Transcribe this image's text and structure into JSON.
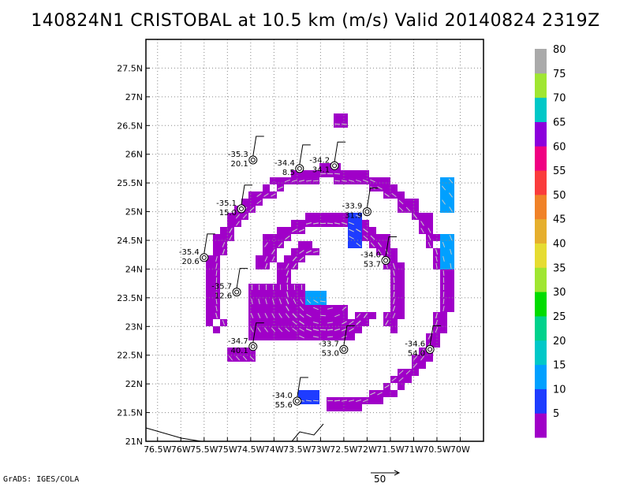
{
  "title": "140824N1 CRISTOBAL at 10.5 km (m/s) Valid 20140824 2319Z",
  "credit": "GrADS: IGES/COLA",
  "scale_vector_label": "50",
  "chart_data": {
    "type": "heatmap",
    "title": "140824N1 CRISTOBAL at 10.5 km (m/s) Valid 20140824 2319Z",
    "xlabel": "",
    "ylabel": "",
    "xlim": [
      -76.75,
      -69.5
    ],
    "ylim": [
      21.0,
      28.0
    ],
    "x_ticks": [
      -76.5,
      -76,
      -75.5,
      -75,
      -74.5,
      -74,
      -73.5,
      -73,
      -72.5,
      -72,
      -71.5,
      -71,
      -70.5,
      -70
    ],
    "x_tick_labels": [
      "76.5W",
      "76W",
      "75.5W",
      "75W",
      "74.5W",
      "74W",
      "73.5W",
      "73W",
      "72.5W",
      "72W",
      "71.5W",
      "71W",
      "70.5W",
      "70W"
    ],
    "y_ticks": [
      21,
      21.5,
      22,
      22.5,
      23,
      23.5,
      24,
      24.5,
      25,
      25.5,
      26,
      26.5,
      27,
      27.5
    ],
    "y_tick_labels": [
      "21N",
      "21.5N",
      "22N",
      "22.5N",
      "23N",
      "23.5N",
      "24N",
      "24.5N",
      "25N",
      "25.5N",
      "26N",
      "26.5N",
      "27N",
      "27.5N"
    ],
    "grid": true,
    "colorbar": {
      "labels": [
        "5",
        "10",
        "15",
        "20",
        "25",
        "30",
        "35",
        "40",
        "45",
        "50",
        "55",
        "60",
        "65",
        "70",
        "75",
        "80"
      ],
      "colors": [
        "#a000c8",
        "#1e3cff",
        "#00a0ff",
        "#00c8c8",
        "#00d28c",
        "#00dc00",
        "#a0e632",
        "#e6dc32",
        "#e6af2d",
        "#f08228",
        "#fa3c3c",
        "#f00082",
        "#8c00dc",
        "#00c8c8",
        "#a0e632",
        "#aaaaaa"
      ]
    },
    "storm_center": {
      "lon": -72.9,
      "lat": 23.7
    },
    "rings": [
      {
        "radius_deg": 2.55,
        "start_deg": -90,
        "end_deg": 200,
        "speed": 5
      },
      {
        "radius_deg": 1.55,
        "start_deg": -30,
        "end_deg": 160,
        "speed": 5
      },
      {
        "radius_deg": 1.05,
        "start_deg": 110,
        "end_deg": 330,
        "speed": 5
      }
    ],
    "patches": [
      {
        "lon": -74.0,
        "lat": 23.3,
        "w": 1.2,
        "h": 0.9,
        "speed": 5
      },
      {
        "lon": -73.0,
        "lat": 23.1,
        "w": 1.1,
        "h": 0.6,
        "speed": 5
      },
      {
        "lon": -73.2,
        "lat": 23.55,
        "w": 0.4,
        "h": 0.2,
        "speed": 15
      },
      {
        "lon": -72.3,
        "lat": 24.7,
        "w": 0.3,
        "h": 0.5,
        "speed": 10
      },
      {
        "lon": -73.3,
        "lat": 21.8,
        "w": 0.4,
        "h": 0.3,
        "speed": 10
      },
      {
        "lon": -70.3,
        "lat": 25.3,
        "w": 0.25,
        "h": 0.5,
        "speed": 15
      },
      {
        "lon": -70.35,
        "lat": 24.3,
        "w": 0.2,
        "h": 0.6,
        "speed": 15
      },
      {
        "lon": -74.7,
        "lat": 22.55,
        "w": 0.5,
        "h": 0.2,
        "speed": 5
      },
      {
        "lon": -74.6,
        "lat": 25.15,
        "w": 0.12,
        "h": 0.12,
        "speed": 5
      },
      {
        "lon": -74.2,
        "lat": 24.55,
        "w": 0.15,
        "h": 0.15,
        "speed": 5
      },
      {
        "lon": -72.6,
        "lat": 26.6,
        "w": 0.2,
        "h": 0.2,
        "speed": 5
      }
    ],
    "observations": [
      {
        "lon": -74.45,
        "lat": 25.9,
        "label_top": "-35.3",
        "label_bottom": "20.1"
      },
      {
        "lon": -73.45,
        "lat": 25.75,
        "label_top": "-34.4",
        "label_bottom": "8.5"
      },
      {
        "lon": -72.7,
        "lat": 25.8,
        "label_top": "-34.2",
        "label_bottom": "34.1"
      },
      {
        "lon": -74.7,
        "lat": 25.05,
        "label_top": "-35.1",
        "label_bottom": "15.0"
      },
      {
        "lon": -72.0,
        "lat": 25.0,
        "label_top": "-33.9",
        "label_bottom": "31.9"
      },
      {
        "lon": -75.5,
        "lat": 24.2,
        "label_top": "-35.4",
        "label_bottom": "20.6"
      },
      {
        "lon": -71.6,
        "lat": 24.15,
        "label_top": "-34.0",
        "label_bottom": "53.7"
      },
      {
        "lon": -74.8,
        "lat": 23.6,
        "label_top": "-35.7",
        "label_bottom": "12.6"
      },
      {
        "lon": -74.45,
        "lat": 22.65,
        "label_top": "-34.7",
        "label_bottom": "40.1"
      },
      {
        "lon": -72.5,
        "lat": 22.6,
        "label_top": "-33.7",
        "label_bottom": "53.0"
      },
      {
        "lon": -70.65,
        "lat": 22.6,
        "label_top": "-34.6",
        "label_bottom": "54.0"
      },
      {
        "lon": -73.5,
        "lat": 21.7,
        "label_top": "-34.0",
        "label_bottom": "55.6"
      }
    ]
  }
}
